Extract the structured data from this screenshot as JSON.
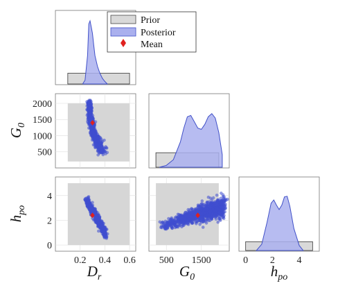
{
  "chart_data": {
    "type": "corner-plot",
    "parameters": [
      {
        "symbol": "D",
        "subscript": "r",
        "range": [
          0.0,
          0.65
        ],
        "ticks": [
          0.2,
          0.4,
          0.6
        ],
        "tick_labels": [
          "0.2",
          "0.4",
          "0.6"
        ],
        "prior": [
          0.1,
          0.6
        ]
      },
      {
        "symbol": "G",
        "subscript": "0",
        "range": [
          0,
          2300
        ],
        "ticks": [
          500,
          1500
        ],
        "tick_labels": [
          "500",
          "1500"
        ],
        "ticks_y": [
          500,
          1000,
          1500,
          2000
        ],
        "tick_labels_y": [
          "500",
          "1000",
          "1500",
          "2000"
        ],
        "prior": [
          200,
          2000
        ]
      },
      {
        "symbol": "h",
        "subscript": "po",
        "range": [
          -0.5,
          5.5
        ],
        "ticks": [
          0,
          2,
          4
        ],
        "tick_labels": [
          "0",
          "2",
          "4"
        ],
        "prior": [
          0,
          5
        ]
      }
    ],
    "legend": {
      "placement": "top-center",
      "entries": [
        {
          "label": "Prior",
          "color": "#d9d9d9"
        },
        {
          "label": "Posterior",
          "color": "#aab0ee"
        },
        {
          "label": "Mean",
          "color": "#e0211f",
          "marker": "diamond"
        }
      ]
    },
    "means": {
      "D_r": 0.3,
      "G_0": 1400,
      "h_po": 2.4
    },
    "marginals": {
      "D_r": {
        "x": [
          0.22,
          0.24,
          0.26,
          0.27,
          0.28,
          0.29,
          0.3,
          0.31,
          0.32,
          0.34,
          0.36,
          0.38,
          0.4,
          0.42
        ],
        "y": [
          0,
          0.06,
          0.45,
          0.95,
          1.0,
          0.9,
          0.8,
          0.62,
          0.45,
          0.28,
          0.17,
          0.09,
          0.04,
          0
        ]
      },
      "G_0": {
        "x": [
          300,
          500,
          700,
          900,
          1000,
          1100,
          1200,
          1300,
          1400,
          1500,
          1600,
          1700,
          1800,
          1900,
          2000,
          2100
        ],
        "y": [
          0,
          0.03,
          0.12,
          0.4,
          0.62,
          0.8,
          0.82,
          0.72,
          0.62,
          0.6,
          0.68,
          0.8,
          0.85,
          0.78,
          0.55,
          0.2
        ]
      },
      "h_po": {
        "x": [
          0.8,
          1.2,
          1.6,
          1.9,
          2.1,
          2.3,
          2.5,
          2.7,
          2.9,
          3.1,
          3.3,
          3.6,
          4.0,
          4.3
        ],
        "y": [
          0,
          0.1,
          0.45,
          0.75,
          0.8,
          0.72,
          0.65,
          0.72,
          0.85,
          0.86,
          0.7,
          0.35,
          0.08,
          0
        ]
      }
    },
    "prior_density": {
      "D_r": 0.17,
      "G_0": 0.23,
      "h_po": 0.14
    },
    "scatter_colors": {
      "posterior": "#3f4fd0",
      "prior_box": "#d6d6d6",
      "mean": "#e0211f"
    },
    "grid": true
  }
}
